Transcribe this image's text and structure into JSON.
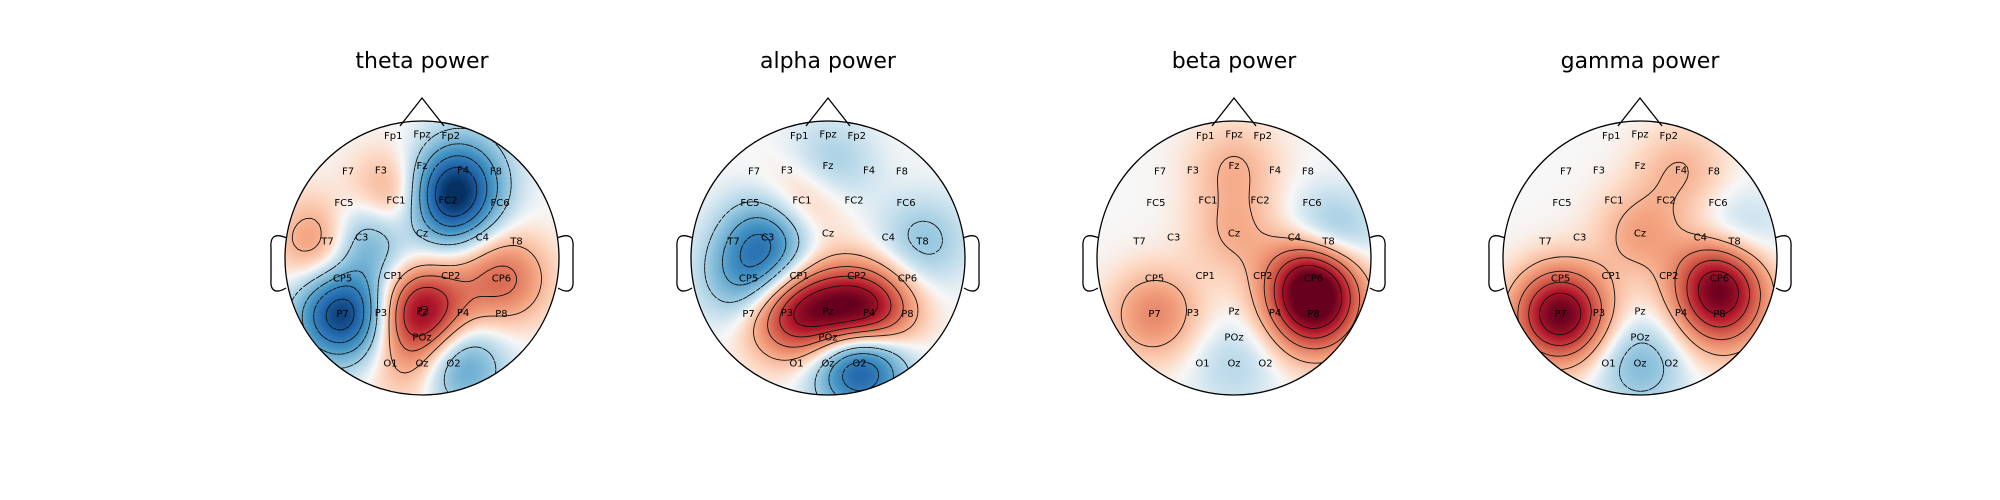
{
  "chart_data": [
    {
      "type": "heatmap",
      "title": "theta power",
      "colormap": "RdBu_r",
      "channels": [
        "Fp1",
        "Fpz",
        "Fp2",
        "F7",
        "F3",
        "Fz",
        "F4",
        "F8",
        "FC5",
        "FC1",
        "FC2",
        "FC6",
        "T7",
        "C3",
        "Cz",
        "C4",
        "T8",
        "CP5",
        "CP1",
        "CP2",
        "CP6",
        "P7",
        "P3",
        "Pz",
        "P4",
        "P8",
        "POz",
        "O1",
        "Oz",
        "O2"
      ],
      "sources": [
        {
          "channel": "FC1",
          "value": 0.45
        },
        {
          "channel": "FC2",
          "value": -0.9
        },
        {
          "channel": "P7",
          "value": -0.95
        },
        {
          "channel": "Pz",
          "value": 0.85
        },
        {
          "channel": "CP6",
          "value": 0.45
        },
        {
          "channel": "T7",
          "value": 0.5
        },
        {
          "channel": "O2",
          "value": -0.6
        },
        {
          "channel": "C3",
          "value": -0.6
        },
        {
          "channel": "Oz",
          "value": 0.35
        },
        {
          "channel": "F4",
          "value": -0.35
        }
      ]
    },
    {
      "type": "heatmap",
      "title": "alpha power",
      "colormap": "RdBu_r",
      "channels": [
        "Fp1",
        "Fpz",
        "Fp2",
        "F7",
        "F3",
        "Fz",
        "F4",
        "F8",
        "FC5",
        "FC1",
        "FC2",
        "FC6",
        "T7",
        "C3",
        "Cz",
        "C4",
        "T8",
        "CP5",
        "CP1",
        "CP2",
        "CP6",
        "P7",
        "P3",
        "Pz",
        "P4",
        "P8",
        "POz",
        "O1",
        "Oz",
        "O2"
      ],
      "sources": [
        {
          "channel": "P4",
          "value": 0.85
        },
        {
          "channel": "P3",
          "value": 0.6
        },
        {
          "channel": "Pz",
          "value": 0.55
        },
        {
          "channel": "O2",
          "value": -0.95
        },
        {
          "channel": "C3",
          "value": -0.55
        },
        {
          "channel": "CP5",
          "value": -0.45
        },
        {
          "channel": "FC1",
          "value": 0.3
        },
        {
          "channel": "T8",
          "value": -0.25
        },
        {
          "channel": "Fz",
          "value": -0.25
        }
      ]
    },
    {
      "type": "heatmap",
      "title": "beta power",
      "colormap": "RdBu_r",
      "channels": [
        "Fp1",
        "Fpz",
        "Fp2",
        "F7",
        "F3",
        "Fz",
        "F4",
        "F8",
        "FC5",
        "FC1",
        "FC2",
        "FC6",
        "T7",
        "C3",
        "Cz",
        "C4",
        "T8",
        "CP5",
        "CP1",
        "CP2",
        "CP6",
        "P7",
        "P3",
        "Pz",
        "P4",
        "P8",
        "POz",
        "O1",
        "Oz",
        "O2"
      ],
      "sources": [
        {
          "channel": "CP6",
          "value": 0.95
        },
        {
          "channel": "P8",
          "value": 0.6
        },
        {
          "channel": "T8",
          "value": -0.4
        },
        {
          "channel": "P7",
          "value": 0.35
        },
        {
          "channel": "Cz",
          "value": 0.2
        },
        {
          "channel": "Fz",
          "value": 0.2
        },
        {
          "channel": "Oz",
          "value": -0.15
        }
      ]
    },
    {
      "type": "heatmap",
      "title": "gamma power",
      "colormap": "RdBu_r",
      "channels": [
        "Fp1",
        "Fpz",
        "Fp2",
        "F7",
        "F3",
        "Fz",
        "F4",
        "F8",
        "FC5",
        "FC1",
        "FC2",
        "FC6",
        "T7",
        "C3",
        "Cz",
        "C4",
        "T8",
        "CP5",
        "CP1",
        "CP2",
        "CP6",
        "P7",
        "P3",
        "Pz",
        "P4",
        "P8",
        "POz",
        "O1",
        "Oz",
        "O2"
      ],
      "sources": [
        {
          "channel": "P7",
          "value": 1.0
        },
        {
          "channel": "CP6",
          "value": 0.8
        },
        {
          "channel": "Cz",
          "value": 0.25
        },
        {
          "channel": "F4",
          "value": 0.2
        },
        {
          "channel": "Oz",
          "value": -0.3
        },
        {
          "channel": "T8",
          "value": -0.25
        },
        {
          "channel": "P8",
          "value": 0.4
        }
      ]
    }
  ]
}
